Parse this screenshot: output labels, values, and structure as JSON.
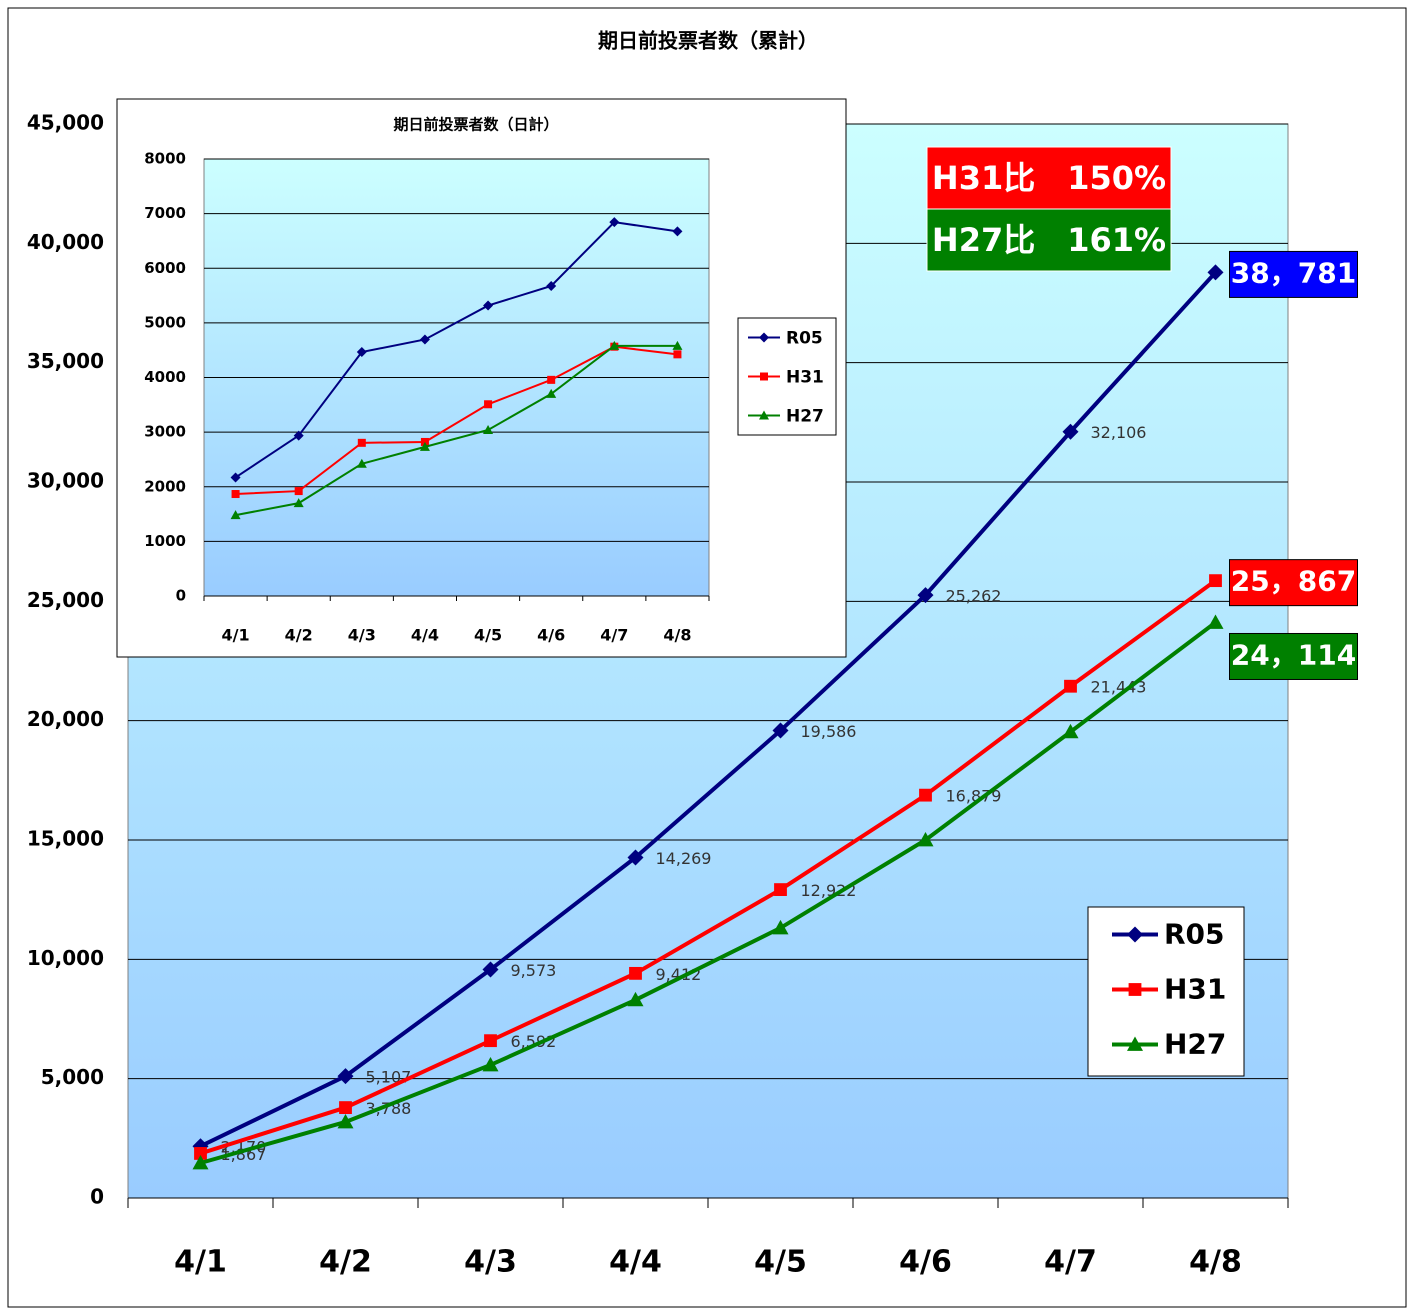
{
  "chart_data": [
    {
      "type": "line",
      "title": "期日前投票者数（累計）",
      "categories": [
        "4/1",
        "4/2",
        "4/3",
        "4/4",
        "4/5",
        "4/6",
        "4/7",
        "4/8"
      ],
      "ylim": [
        0,
        45000
      ],
      "yticks": [
        0,
        {
          "value": 5000,
          "label": "5,000"
        },
        {
          "value": 10000,
          "label": "10,000"
        },
        {
          "value": 15000,
          "label": "15,000"
        },
        {
          "value": 20000,
          "label": "20,000"
        },
        {
          "value": 25000,
          "label": "25,000"
        },
        {
          "value": 30000,
          "label": "30,000"
        },
        {
          "value": 35000,
          "label": "35,000"
        },
        {
          "value": 40000,
          "label": "40,000"
        },
        {
          "value": 45000,
          "label": "45,000"
        }
      ],
      "grid": true,
      "legend": "lower right",
      "series": [
        {
          "name": "R05",
          "color": "#000080",
          "marker": "diamond",
          "box_color": "#0000ff",
          "values": [
            2170,
            5107,
            9573,
            14269,
            19586,
            25262,
            32106,
            38781
          ],
          "value_labels": [
            "2,170",
            "5,107",
            "9,573",
            "14,269",
            "19,586",
            "25,262",
            "32,106",
            "38，781"
          ]
        },
        {
          "name": "H31",
          "color": "#ff0000",
          "marker": "square",
          "box_color": "#ff0000",
          "values": [
            1867,
            3788,
            6592,
            9412,
            12922,
            16879,
            21443,
            25867
          ],
          "value_labels": [
            "1,867",
            "3,788",
            "6,592",
            "9,412",
            "12,922",
            "16,879",
            "21,443",
            "25，867"
          ]
        },
        {
          "name": "H27",
          "color": "#008000",
          "marker": "triangle",
          "box_color": "#008000",
          "values": [
            1467,
            3185,
            5575,
            8300,
            11316,
            15000,
            19530,
            24114
          ],
          "value_labels": [
            null,
            null,
            null,
            null,
            null,
            null,
            null,
            "24，114"
          ]
        }
      ],
      "annotations": [
        {
          "text": "H31比　150%",
          "color": "#ff0000"
        },
        {
          "text": "H27比　161%",
          "color": "#008000"
        }
      ]
    },
    {
      "type": "line",
      "title": "期日前投票者数（日計）",
      "categories": [
        "4/1",
        "4/2",
        "4/3",
        "4/4",
        "4/5",
        "4/6",
        "4/7",
        "4/8"
      ],
      "ylim": [
        0,
        8000
      ],
      "yticks": [
        0,
        1000,
        2000,
        3000,
        4000,
        5000,
        6000,
        7000,
        8000
      ],
      "grid": true,
      "legend": "right",
      "series": [
        {
          "name": "R05",
          "color": "#000080",
          "marker": "diamond",
          "values": [
            2170,
            2937,
            4466,
            4696,
            5317,
            5676,
            6844,
            6675
          ]
        },
        {
          "name": "H31",
          "color": "#ff0000",
          "marker": "square",
          "values": [
            1867,
            1921,
            2804,
            2820,
            3510,
            3957,
            4564,
            4424
          ]
        },
        {
          "name": "H27",
          "color": "#008000",
          "marker": "triangle",
          "values": [
            1480,
            1700,
            2420,
            2730,
            3040,
            3700,
            4580,
            4580
          ]
        }
      ]
    }
  ]
}
